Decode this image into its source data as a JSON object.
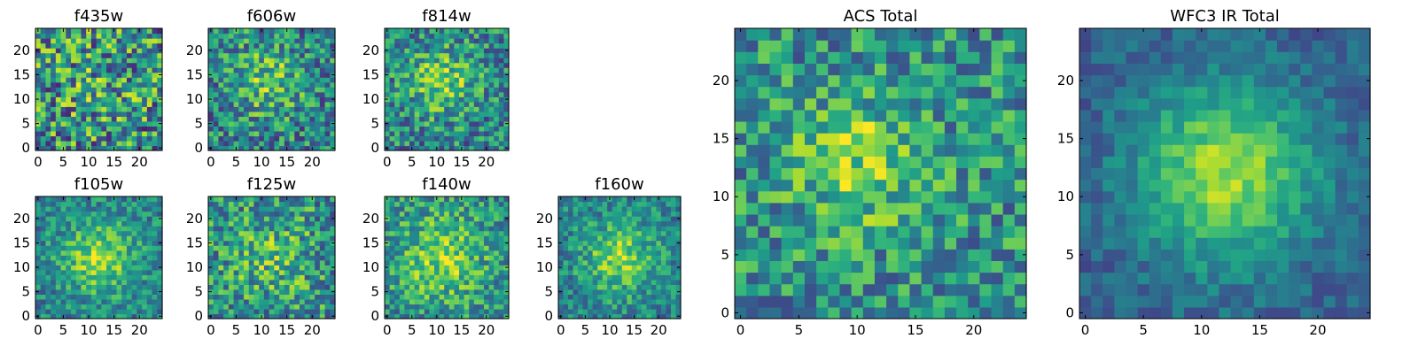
{
  "chart_data": [
    {
      "type": "heatmap",
      "title": "f435w",
      "x_ticks": [
        "0",
        "5",
        "10",
        "15",
        "20"
      ],
      "y_ticks": [
        "0",
        "5",
        "10",
        "15",
        "20"
      ],
      "xlim": [
        0,
        25
      ],
      "ylim": [
        0,
        25
      ],
      "grid": 25,
      "seed": 11,
      "amp": 0.08,
      "noise": 0.42,
      "blob": [
        12,
        13
      ],
      "sigma": 6,
      "base": 0.5
    },
    {
      "type": "heatmap",
      "title": "f606w",
      "x_ticks": [
        "0",
        "5",
        "10",
        "15",
        "20"
      ],
      "y_ticks": [
        "0",
        "5",
        "10",
        "15",
        "20"
      ],
      "xlim": [
        0,
        25
      ],
      "ylim": [
        0,
        25
      ],
      "grid": 25,
      "seed": 23,
      "amp": 0.28,
      "noise": 0.32,
      "blob": [
        11,
        14
      ],
      "sigma": 5,
      "base": 0.45
    },
    {
      "type": "heatmap",
      "title": "f814w",
      "x_ticks": [
        "0",
        "5",
        "10",
        "15",
        "20"
      ],
      "y_ticks": [
        "0",
        "5",
        "10",
        "15",
        "20"
      ],
      "xlim": [
        0,
        25
      ],
      "ylim": [
        0,
        25
      ],
      "grid": 25,
      "seed": 37,
      "amp": 0.32,
      "noise": 0.3,
      "blob": [
        11,
        14
      ],
      "sigma": 5,
      "base": 0.45
    },
    {
      "type": "heatmap",
      "title": "f105w",
      "x_ticks": [
        "0",
        "5",
        "10",
        "15",
        "20"
      ],
      "y_ticks": [
        "0",
        "5",
        "10",
        "15",
        "20"
      ],
      "xlim": [
        0,
        25
      ],
      "ylim": [
        0,
        25
      ],
      "grid": 25,
      "seed": 41,
      "amp": 0.4,
      "noise": 0.22,
      "blob": [
        12,
        12
      ],
      "sigma": 5,
      "base": 0.45
    },
    {
      "type": "heatmap",
      "title": "f125w",
      "x_ticks": [
        "0",
        "5",
        "10",
        "15",
        "20"
      ],
      "y_ticks": [
        "0",
        "5",
        "10",
        "15",
        "20"
      ],
      "xlim": [
        0,
        25
      ],
      "ylim": [
        0,
        25
      ],
      "grid": 25,
      "seed": 53,
      "amp": 0.18,
      "noise": 0.32,
      "blob": [
        12,
        12
      ],
      "sigma": 6,
      "base": 0.5
    },
    {
      "type": "heatmap",
      "title": "f140w",
      "x_ticks": [
        "0",
        "5",
        "10",
        "15",
        "20"
      ],
      "y_ticks": [
        "0",
        "5",
        "10",
        "15",
        "20"
      ],
      "xlim": [
        0,
        25
      ],
      "ylim": [
        0,
        25
      ],
      "grid": 25,
      "seed": 67,
      "amp": 0.32,
      "noise": 0.26,
      "blob": [
        11,
        12
      ],
      "sigma": 6,
      "base": 0.5
    },
    {
      "type": "heatmap",
      "title": "f160w",
      "x_ticks": [
        "0",
        "5",
        "10",
        "15",
        "20"
      ],
      "y_ticks": [
        "0",
        "5",
        "10",
        "15",
        "20"
      ],
      "xlim": [
        0,
        25
      ],
      "ylim": [
        0,
        25
      ],
      "grid": 25,
      "seed": 79,
      "amp": 0.38,
      "noise": 0.22,
      "blob": [
        12,
        12
      ],
      "sigma": 5,
      "base": 0.45
    },
    {
      "type": "heatmap",
      "title": "ACS Total",
      "x_ticks": [
        "0",
        "5",
        "10",
        "15",
        "20"
      ],
      "y_ticks": [
        "0",
        "5",
        "10",
        "15",
        "20"
      ],
      "xlim": [
        0,
        25
      ],
      "ylim": [
        0,
        25
      ],
      "grid": 25,
      "seed": 97,
      "amp": 0.3,
      "noise": 0.28,
      "blob": [
        10,
        13
      ],
      "sigma": 4,
      "base": 0.5
    },
    {
      "type": "heatmap",
      "title": "WFC3 IR Total",
      "x_ticks": [
        "0",
        "5",
        "10",
        "15",
        "20"
      ],
      "y_ticks": [
        "0",
        "5",
        "10",
        "15",
        "20"
      ],
      "xlim": [
        0,
        25
      ],
      "ylim": [
        0,
        25
      ],
      "grid": 25,
      "seed": 113,
      "amp": 0.55,
      "noise": 0.12,
      "blob": [
        12,
        12
      ],
      "sigma": 5.5,
      "base": 0.3
    }
  ]
}
